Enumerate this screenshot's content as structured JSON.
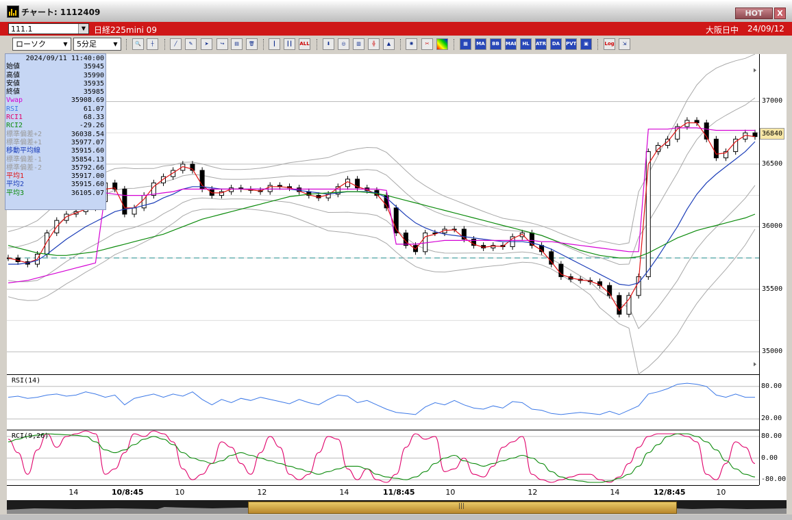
{
  "window": {
    "title": "チャート: 1112409",
    "hot_label": "HOT",
    "close_label": "X"
  },
  "symbol_bar": {
    "code": "111.1",
    "name": "日経225mini 09",
    "market": "大阪日中",
    "date": "24/09/12"
  },
  "toolbar": {
    "chart_type": "ローソク",
    "interval": "5分足",
    "indicator_buttons": [
      "MA",
      "BB",
      "MAE",
      "HL",
      "ATR",
      "DA",
      "PVT",
      "Log"
    ]
  },
  "info_panel": {
    "timestamp": "2024/09/11  11:40:00",
    "rows": [
      {
        "label": "始値",
        "value": "35945",
        "color": "#000000"
      },
      {
        "label": "高値",
        "value": "35990",
        "color": "#000000"
      },
      {
        "label": "安値",
        "value": "35935",
        "color": "#000000"
      },
      {
        "label": "終値",
        "value": "35985",
        "color": "#000000"
      },
      {
        "label": "Vwap",
        "value": "35908.69",
        "color": "#d400d4"
      },
      {
        "label": "RSI",
        "value": "61.07",
        "color": "#3b78e7"
      },
      {
        "label": "RCI1",
        "value": "68.33",
        "color": "#e0006a"
      },
      {
        "label": "RCI2",
        "value": "-29.26",
        "color": "#0a8a0a"
      },
      {
        "label": "標準偏差+2",
        "value": "36038.54",
        "color": "#9a9a9a"
      },
      {
        "label": "標準偏差+1",
        "value": "35977.07",
        "color": "#9a9a9a"
      },
      {
        "label": "移動平均線",
        "value": "35915.60",
        "color": "#1b3db8"
      },
      {
        "label": "標準偏差-1",
        "value": "35854.13",
        "color": "#9a9a9a"
      },
      {
        "label": "標準偏差-2",
        "value": "35792.66",
        "color": "#9a9a9a"
      },
      {
        "label": "平均1",
        "value": "35917.00",
        "color": "#e01010"
      },
      {
        "label": "平均2",
        "value": "35915.60",
        "color": "#1b3db8"
      },
      {
        "label": "平均3",
        "value": "36105.07",
        "color": "#0a8a0a"
      }
    ]
  },
  "chart_data": [
    {
      "type": "line",
      "panel": "price",
      "y_ticks": [
        35000,
        35500,
        36000,
        36500,
        37000
      ],
      "ylim": [
        34820,
        37380
      ],
      "current_price": "36840",
      "reference_line": 35750,
      "x_tick_labels": [
        "14",
        "10/8:45",
        "10",
        "12",
        "14",
        "11/8:45",
        "10",
        "12",
        "14",
        "12/8:45",
        "10"
      ],
      "x_tick_bold": [
        false,
        true,
        false,
        false,
        false,
        true,
        false,
        false,
        false,
        true,
        false
      ],
      "close": [
        35750,
        35720,
        35700,
        35780,
        35950,
        36050,
        36100,
        36120,
        36150,
        36200,
        36350,
        36300,
        36100,
        36150,
        36250,
        36350,
        36400,
        36450,
        36500,
        36450,
        36300,
        36250,
        36280,
        36310,
        36300,
        36290,
        36280,
        36330,
        36320,
        36310,
        36280,
        36250,
        36230,
        36260,
        36320,
        36380,
        36310,
        36290,
        36250,
        36150,
        35950,
        35850,
        35800,
        35950,
        35950,
        35980,
        35980,
        35900,
        35850,
        35830,
        35850,
        35840,
        35920,
        35950,
        35850,
        35800,
        35700,
        35600,
        35580,
        35570,
        35560,
        35530,
        35450,
        35300,
        35450,
        35600,
        36600,
        36650,
        36700,
        36800,
        36850,
        36830,
        36700,
        36550,
        36600,
        36700,
        36750,
        36720
      ],
      "series": [
        {
          "name": "平均1",
          "color": "#e01010",
          "values": [
            35750,
            35730,
            35710,
            35740,
            35880,
            36000,
            36080,
            36110,
            36140,
            36180,
            36300,
            36310,
            36150,
            36150,
            36220,
            36320,
            36380,
            36430,
            36480,
            36460,
            36330,
            36270,
            36270,
            36300,
            36300,
            36295,
            36285,
            36320,
            36320,
            36312,
            36285,
            36255,
            36235,
            36255,
            36310,
            36360,
            36320,
            36295,
            36260,
            36170,
            35980,
            35880,
            35820,
            35920,
            35940,
            35970,
            35975,
            35910,
            35860,
            35835,
            35845,
            35842,
            35905,
            35940,
            35860,
            35810,
            35720,
            35620,
            35590,
            35575,
            35565,
            35535,
            35465,
            35330,
            35420,
            35560,
            36500,
            36620,
            36680,
            36780,
            36830,
            36830,
            36720,
            36580,
            36590,
            36680,
            36730,
            36720
          ]
        },
        {
          "name": "平均2",
          "color": "#1b3db8",
          "values": [
            35700,
            35700,
            35710,
            35730,
            35780,
            35840,
            35900,
            35950,
            36000,
            36040,
            36080,
            36120,
            36140,
            36150,
            36170,
            36190,
            36230,
            36260,
            36300,
            36320,
            36320,
            36310,
            36300,
            36300,
            36300,
            36300,
            36300,
            36300,
            36300,
            36300,
            36290,
            36280,
            36270,
            36260,
            36270,
            36280,
            36280,
            36280,
            36270,
            36230,
            36160,
            36090,
            36030,
            35990,
            35960,
            35940,
            35930,
            35920,
            35910,
            35900,
            35890,
            35880,
            35880,
            35880,
            35870,
            35850,
            35820,
            35780,
            35740,
            35700,
            35660,
            35620,
            35580,
            35540,
            35530,
            35550,
            35650,
            35760,
            35880,
            36000,
            36140,
            36260,
            36350,
            36420,
            36480,
            36540,
            36600,
            36680
          ]
        },
        {
          "name": "平均3",
          "color": "#0a8a0a",
          "values": [
            35850,
            35830,
            35810,
            35790,
            35780,
            35770,
            35770,
            35780,
            35790,
            35800,
            35820,
            35840,
            35860,
            35880,
            35900,
            35920,
            35940,
            35970,
            36000,
            36030,
            36060,
            36080,
            36100,
            36120,
            36140,
            36160,
            36180,
            36200,
            36220,
            36240,
            36250,
            36260,
            36265,
            36270,
            36275,
            36280,
            36280,
            36275,
            36265,
            36250,
            36230,
            36210,
            36190,
            36170,
            36150,
            36130,
            36110,
            36090,
            36070,
            36050,
            36030,
            36010,
            35990,
            35970,
            35950,
            35930,
            35900,
            35870,
            35840,
            35810,
            35790,
            35770,
            35760,
            35750,
            35750,
            35760,
            35790,
            35830,
            35870,
            35910,
            35940,
            35970,
            35990,
            36010,
            36030,
            36050,
            36070,
            36100
          ]
        },
        {
          "name": "Vwap",
          "color": "#d400d4",
          "values": [
            35550,
            35560,
            35570,
            35590,
            35610,
            35630,
            35650,
            35670,
            35690,
            35710,
            36270,
            36260,
            36250,
            36250,
            36250,
            36260,
            36270,
            36280,
            36300,
            36300,
            36300,
            36300,
            36300,
            36300,
            36300,
            36300,
            36300,
            36300,
            36300,
            36300,
            36300,
            36300,
            36300,
            36300,
            36300,
            36300,
            36300,
            36300,
            36300,
            36290,
            35860,
            35860,
            35860,
            35870,
            35880,
            35890,
            35890,
            35890,
            35890,
            35890,
            35890,
            35890,
            35890,
            35890,
            35890,
            35880,
            35880,
            35870,
            35860,
            35850,
            35840,
            35830,
            35820,
            35810,
            35800,
            35800,
            36780,
            36780,
            36780,
            36790,
            36790,
            36790,
            36780,
            36770,
            36770,
            36770,
            36770,
            36770
          ]
        }
      ]
    },
    {
      "type": "line",
      "panel": "rsi",
      "title": "RSI(14)",
      "y_ticks": [
        20,
        80
      ],
      "ylim": [
        0,
        100
      ],
      "series": [
        {
          "name": "RSI",
          "color": "#3b78e7",
          "values": [
            60,
            62,
            58,
            60,
            64,
            66,
            62,
            64,
            70,
            66,
            60,
            64,
            46,
            58,
            62,
            66,
            60,
            66,
            62,
            70,
            56,
            46,
            56,
            50,
            58,
            54,
            60,
            56,
            52,
            48,
            56,
            50,
            46,
            56,
            64,
            62,
            50,
            54,
            46,
            38,
            32,
            30,
            28,
            42,
            50,
            46,
            54,
            46,
            40,
            38,
            44,
            40,
            52,
            50,
            38,
            36,
            30,
            28,
            30,
            32,
            30,
            28,
            34,
            28,
            36,
            44,
            66,
            70,
            76,
            84,
            86,
            84,
            80,
            64,
            60,
            66,
            60,
            60
          ]
        }
      ]
    },
    {
      "type": "line",
      "panel": "rci",
      "title": "RCI(9,26)",
      "y_ticks": [
        80,
        0,
        -80
      ],
      "ylim": [
        -100,
        100
      ],
      "series": [
        {
          "name": "RCI1",
          "color": "#e0006a",
          "values": [
            70,
            20,
            -60,
            30,
            90,
            40,
            80,
            90,
            100,
            90,
            -60,
            -40,
            20,
            90,
            80,
            100,
            90,
            60,
            -40,
            -80,
            -60,
            -20,
            60,
            40,
            -20,
            -60,
            20,
            80,
            40,
            -60,
            -80,
            -60,
            20,
            80,
            70,
            -40,
            -80,
            -40,
            -80,
            -90,
            -60,
            40,
            90,
            70,
            80,
            -50,
            -40,
            0,
            -60,
            -70,
            -30,
            40,
            60,
            80,
            -60,
            -80,
            -90,
            -80,
            -70,
            -60,
            -60,
            -80,
            -90,
            -70,
            -20,
            40,
            80,
            90,
            90,
            90,
            80,
            60,
            -60,
            -80,
            -20,
            60,
            40,
            -20
          ]
        },
        {
          "name": "RCI2",
          "color": "#0a8a0a",
          "values": [
            60,
            70,
            80,
            85,
            90,
            88,
            86,
            84,
            80,
            60,
            30,
            20,
            30,
            50,
            70,
            80,
            70,
            50,
            20,
            0,
            -10,
            -20,
            -10,
            10,
            20,
            10,
            0,
            -10,
            -20,
            -30,
            -40,
            -50,
            -60,
            -50,
            -40,
            -30,
            -30,
            -40,
            -60,
            -70,
            -75,
            -80,
            -70,
            -50,
            -20,
            0,
            10,
            -10,
            -20,
            -30,
            -20,
            -10,
            0,
            10,
            0,
            -20,
            -50,
            -70,
            -80,
            -85,
            -90,
            -90,
            -85,
            -75,
            -60,
            -30,
            20,
            50,
            80,
            90,
            90,
            80,
            60,
            30,
            -10,
            -40,
            -60,
            -70
          ]
        }
      ]
    }
  ]
}
